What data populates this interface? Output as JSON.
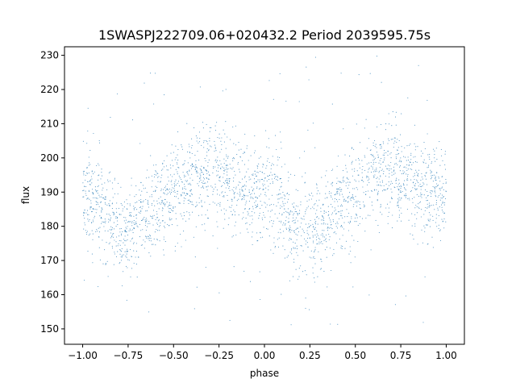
{
  "chart_data": {
    "type": "scatter",
    "title": "1SWASPJ222709.06+020432.2 Period 2039595.75s",
    "xlabel": "phase",
    "ylabel": "flux",
    "xlim": [
      -1.1,
      1.1
    ],
    "ylim": [
      145.5,
      232.5
    ],
    "xticks": [
      -1.0,
      -0.75,
      -0.5,
      -0.25,
      0.0,
      0.25,
      0.5,
      0.75,
      1.0
    ],
    "xtick_labels": [
      "−1.00",
      "−0.75",
      "−0.50",
      "−0.25",
      "0.00",
      "0.25",
      "0.50",
      "0.75",
      "1.00"
    ],
    "yticks": [
      150,
      160,
      170,
      180,
      190,
      200,
      210,
      220,
      230
    ],
    "ytick_labels": [
      "150",
      "160",
      "170",
      "180",
      "190",
      "200",
      "210",
      "220",
      "230"
    ],
    "grid": false,
    "marker_color": "#1f77b4",
    "series_profile": {
      "phase": [
        0.0,
        0.05,
        0.1,
        0.15,
        0.2,
        0.25,
        0.3,
        0.35,
        0.4,
        0.45,
        0.5,
        0.55,
        0.6,
        0.65,
        0.7,
        0.75,
        0.8,
        0.85,
        0.9,
        0.95,
        1.0
      ],
      "flux_mean": [
        190,
        189,
        186,
        181,
        178,
        178,
        180,
        183,
        186,
        189,
        191,
        193,
        195,
        196,
        196,
        195,
        193,
        191,
        190,
        189,
        190
      ],
      "flux_spread": [
        6,
        7,
        8,
        8,
        7,
        7,
        7,
        7,
        7,
        7,
        7,
        7,
        7,
        7,
        8,
        8,
        7,
        7,
        6,
        6,
        6
      ]
    }
  }
}
